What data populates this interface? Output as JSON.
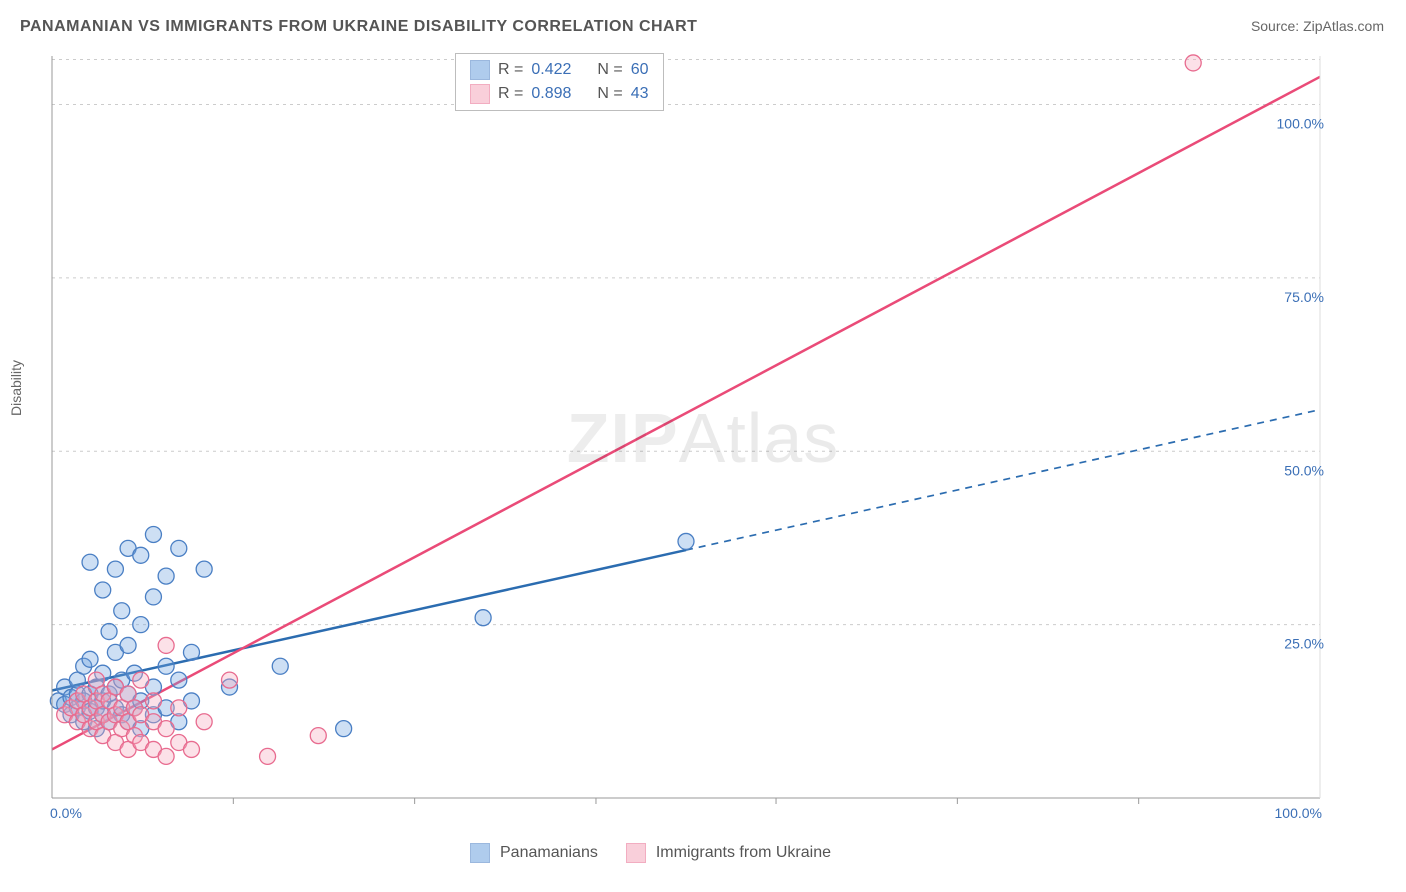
{
  "title": "PANAMANIAN VS IMMIGRANTS FROM UKRAINE DISABILITY CORRELATION CHART",
  "source_label": "Source: ZipAtlas.com",
  "y_axis_label": "Disability",
  "watermark": {
    "bold": "ZIP",
    "rest": "Atlas"
  },
  "chart": {
    "type": "scatter",
    "xlim": [
      0,
      100
    ],
    "ylim": [
      0,
      107
    ],
    "x_ticks": [
      0,
      100
    ],
    "x_tick_labels": [
      "0.0%",
      "100.0%"
    ],
    "y_ticks": [
      25,
      50,
      75,
      100
    ],
    "y_tick_labels": [
      "25.0%",
      "50.0%",
      "75.0%",
      "100.0%"
    ],
    "x_minor_ticks": [
      14.3,
      28.6,
      42.9,
      57.1,
      71.4,
      85.7
    ],
    "background_color": "#ffffff",
    "grid_color": "#cccccc",
    "axis_color": "#999999",
    "tick_label_color": "#3b6fb6",
    "tick_label_fontsize": 14,
    "marker_radius": 8,
    "marker_stroke_width": 1.3,
    "series": [
      {
        "name": "Panamanians",
        "fill_color": "#6fa3e0",
        "fill_opacity": 0.35,
        "stroke_color": "#4a7fc4",
        "r_label": "R =",
        "r_value": "0.422",
        "n_label": "N =",
        "n_value": "60",
        "trend": {
          "x1": 0,
          "y1": 15.5,
          "x2": 100,
          "y2": 56,
          "solid_until_x": 50,
          "color": "#2b6cb0",
          "width": 2.5,
          "dash": "7,6"
        },
        "points": [
          [
            0.5,
            14
          ],
          [
            1,
            13.5
          ],
          [
            1,
            16
          ],
          [
            1.5,
            12
          ],
          [
            1.5,
            14.5
          ],
          [
            2,
            13
          ],
          [
            2,
            15
          ],
          [
            2,
            17
          ],
          [
            2.5,
            11
          ],
          [
            2.5,
            14
          ],
          [
            2.5,
            19
          ],
          [
            3,
            12.5
          ],
          [
            3,
            15
          ],
          [
            3,
            20
          ],
          [
            3,
            34
          ],
          [
            3.5,
            10
          ],
          [
            3.5,
            13
          ],
          [
            3.5,
            16
          ],
          [
            4,
            12
          ],
          [
            4,
            14
          ],
          [
            4,
            18
          ],
          [
            4,
            30
          ],
          [
            4.5,
            11
          ],
          [
            4.5,
            15
          ],
          [
            4.5,
            24
          ],
          [
            5,
            13
          ],
          [
            5,
            16
          ],
          [
            5,
            21
          ],
          [
            5,
            33
          ],
          [
            5.5,
            12
          ],
          [
            5.5,
            17
          ],
          [
            5.5,
            27
          ],
          [
            6,
            11
          ],
          [
            6,
            15
          ],
          [
            6,
            22
          ],
          [
            6,
            36
          ],
          [
            6.5,
            13
          ],
          [
            6.5,
            18
          ],
          [
            7,
            10
          ],
          [
            7,
            14
          ],
          [
            7,
            25
          ],
          [
            7,
            35
          ],
          [
            8,
            12
          ],
          [
            8,
            16
          ],
          [
            8,
            29
          ],
          [
            8,
            38
          ],
          [
            9,
            13
          ],
          [
            9,
            19
          ],
          [
            9,
            32
          ],
          [
            10,
            11
          ],
          [
            10,
            17
          ],
          [
            10,
            36
          ],
          [
            11,
            14
          ],
          [
            11,
            21
          ],
          [
            12,
            33
          ],
          [
            14,
            16
          ],
          [
            18,
            19
          ],
          [
            23,
            10
          ],
          [
            34,
            26
          ],
          [
            50,
            37
          ]
        ]
      },
      {
        "name": "Immigrants from Ukraine",
        "fill_color": "#f5a8bd",
        "fill_opacity": 0.35,
        "stroke_color": "#e86b8f",
        "r_label": "R =",
        "r_value": "0.898",
        "n_label": "N =",
        "n_value": "43",
        "trend": {
          "x1": 0,
          "y1": 7,
          "x2": 100,
          "y2": 104,
          "solid_until_x": 100,
          "color": "#ea4b78",
          "width": 2.5,
          "dash": ""
        },
        "points": [
          [
            1,
            12
          ],
          [
            1.5,
            13
          ],
          [
            2,
            11
          ],
          [
            2,
            14
          ],
          [
            2.5,
            12
          ],
          [
            2.5,
            15
          ],
          [
            3,
            10
          ],
          [
            3,
            13
          ],
          [
            3.5,
            11
          ],
          [
            3.5,
            14
          ],
          [
            3.5,
            17
          ],
          [
            4,
            9
          ],
          [
            4,
            12
          ],
          [
            4,
            15
          ],
          [
            4.5,
            11
          ],
          [
            4.5,
            14
          ],
          [
            5,
            8
          ],
          [
            5,
            12
          ],
          [
            5,
            16
          ],
          [
            5.5,
            10
          ],
          [
            5.5,
            13
          ],
          [
            6,
            7
          ],
          [
            6,
            11
          ],
          [
            6,
            15
          ],
          [
            6.5,
            9
          ],
          [
            6.5,
            13
          ],
          [
            7,
            8
          ],
          [
            7,
            12
          ],
          [
            7,
            17
          ],
          [
            8,
            7
          ],
          [
            8,
            11
          ],
          [
            8,
            14
          ],
          [
            9,
            6
          ],
          [
            9,
            10
          ],
          [
            9,
            22
          ],
          [
            10,
            8
          ],
          [
            10,
            13
          ],
          [
            11,
            7
          ],
          [
            12,
            11
          ],
          [
            14,
            17
          ],
          [
            17,
            6
          ],
          [
            21,
            9
          ],
          [
            90,
            106
          ]
        ]
      }
    ]
  },
  "legend_top": {
    "title": ""
  },
  "legend_bottom": {
    "items": [
      {
        "label": "Panamanians",
        "fill": "#6fa3e0",
        "stroke": "#4a7fc4"
      },
      {
        "label": "Immigrants from Ukraine",
        "fill": "#f5a8bd",
        "stroke": "#e86b8f"
      }
    ]
  }
}
